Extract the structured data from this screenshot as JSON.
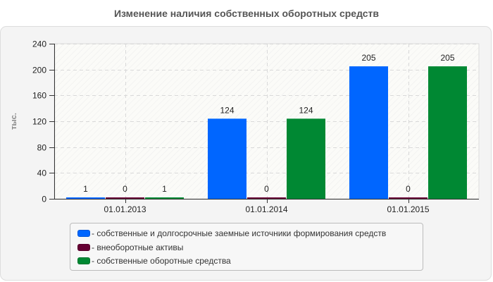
{
  "chart_data": {
    "type": "bar",
    "title": "Изменение наличия собственных оборотных средств",
    "xlabel": "",
    "ylabel": "тыс.",
    "ylim": [
      0,
      240
    ],
    "yticks": [
      0,
      40,
      80,
      120,
      160,
      200,
      240
    ],
    "grid": true,
    "legend_position": "bottom",
    "categories": [
      "01.01.2013",
      "01.01.2014",
      "01.01.2015"
    ],
    "series": [
      {
        "name": "- собственные и долгосрочные заемные источники формирования средств",
        "color": "#0066ff",
        "values": [
          1,
          124,
          205
        ]
      },
      {
        "name": "- внеоборотные активы",
        "color": "#660033",
        "values": [
          0,
          0,
          0
        ]
      },
      {
        "name": "- собственные оборотные средства",
        "color": "#008833",
        "values": [
          1,
          124,
          205
        ]
      }
    ]
  }
}
